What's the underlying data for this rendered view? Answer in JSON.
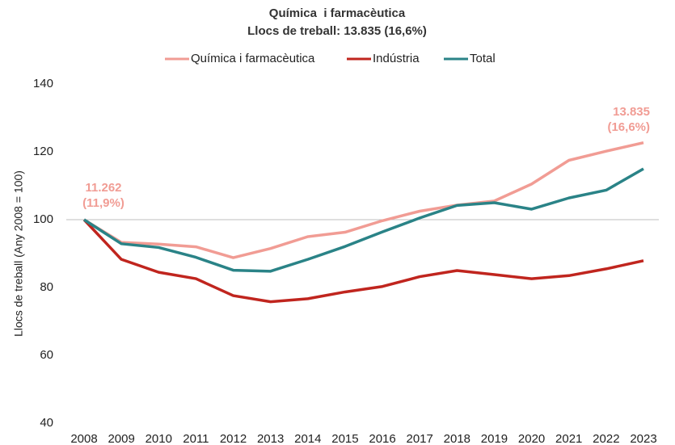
{
  "chart_data": {
    "type": "line",
    "title": "Química  i farmacèutica",
    "subtitle": "Llocs de treball: 13.835 (16,6%)",
    "y_label": "Llocs de treball (Any 2008 = 100)",
    "categories": [
      "2008",
      "2009",
      "2010",
      "2011",
      "2012",
      "2013",
      "2014",
      "2015",
      "2016",
      "2017",
      "2018",
      "2019",
      "2020",
      "2021",
      "2022",
      "2023"
    ],
    "series": [
      {
        "name": "Química i farmacèutica",
        "color": "#f19c94",
        "values": [
          100,
          93.3,
          92.8,
          92,
          88.8,
          91.5,
          95,
          96.3,
          99.7,
          102.5,
          104.3,
          105.5,
          110.5,
          117.5,
          120.2,
          122.7
        ]
      },
      {
        "name": "Indústria",
        "color": "#c0251e",
        "values": [
          100,
          88.3,
          84.5,
          82.6,
          77.6,
          75.8,
          76.7,
          78.7,
          80.3,
          83.2,
          85,
          83.8,
          82.6,
          83.5,
          85.5,
          87.9
        ]
      },
      {
        "name": "Total",
        "color": "#2a8387",
        "values": [
          100,
          92.9,
          91.8,
          88.9,
          85.1,
          84.8,
          88.3,
          92.1,
          96.4,
          100.5,
          104.2,
          105,
          103.1,
          106.4,
          108.7,
          115
        ]
      }
    ],
    "annotations": [
      [
        "11.262",
        "(11,9%)"
      ],
      [
        "13.835",
        "(16,6%)"
      ]
    ],
    "annotation_color": "#f19c94",
    "ylim": [
      40,
      140
    ],
    "yticks": [
      40,
      60,
      80,
      100,
      120,
      140
    ],
    "reference_line": 100,
    "legend": "top"
  }
}
